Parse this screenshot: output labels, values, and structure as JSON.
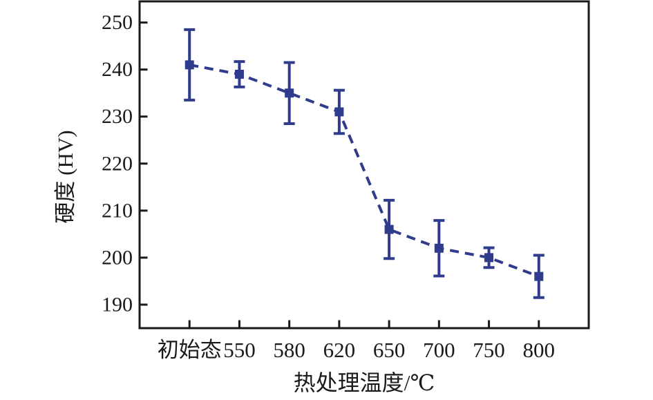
{
  "figure": {
    "background": "#ffffff",
    "axis_color": "#1a1a1a"
  },
  "chart_data": {
    "type": "line",
    "x_axis_type": "categorical",
    "categories": [
      "初始态",
      "550",
      "580",
      "620",
      "650",
      "700",
      "750",
      "800"
    ],
    "series": [
      {
        "name": "硬度",
        "values": [
          241,
          239,
          235,
          231,
          206,
          202,
          200,
          196
        ],
        "errors": [
          7.5,
          2.7,
          6.5,
          4.6,
          6.2,
          5.9,
          2.1,
          4.5
        ],
        "color": "#2f3b8c",
        "marker": "square",
        "line_style": "dashed"
      }
    ],
    "xlabel": "热处理温度/℃",
    "ylabel": "硬度 (HV)",
    "ylim": [
      185,
      254.5
    ],
    "yticks": [
      190,
      200,
      210,
      220,
      230,
      240,
      250
    ],
    "grid": false,
    "legend": "none"
  }
}
